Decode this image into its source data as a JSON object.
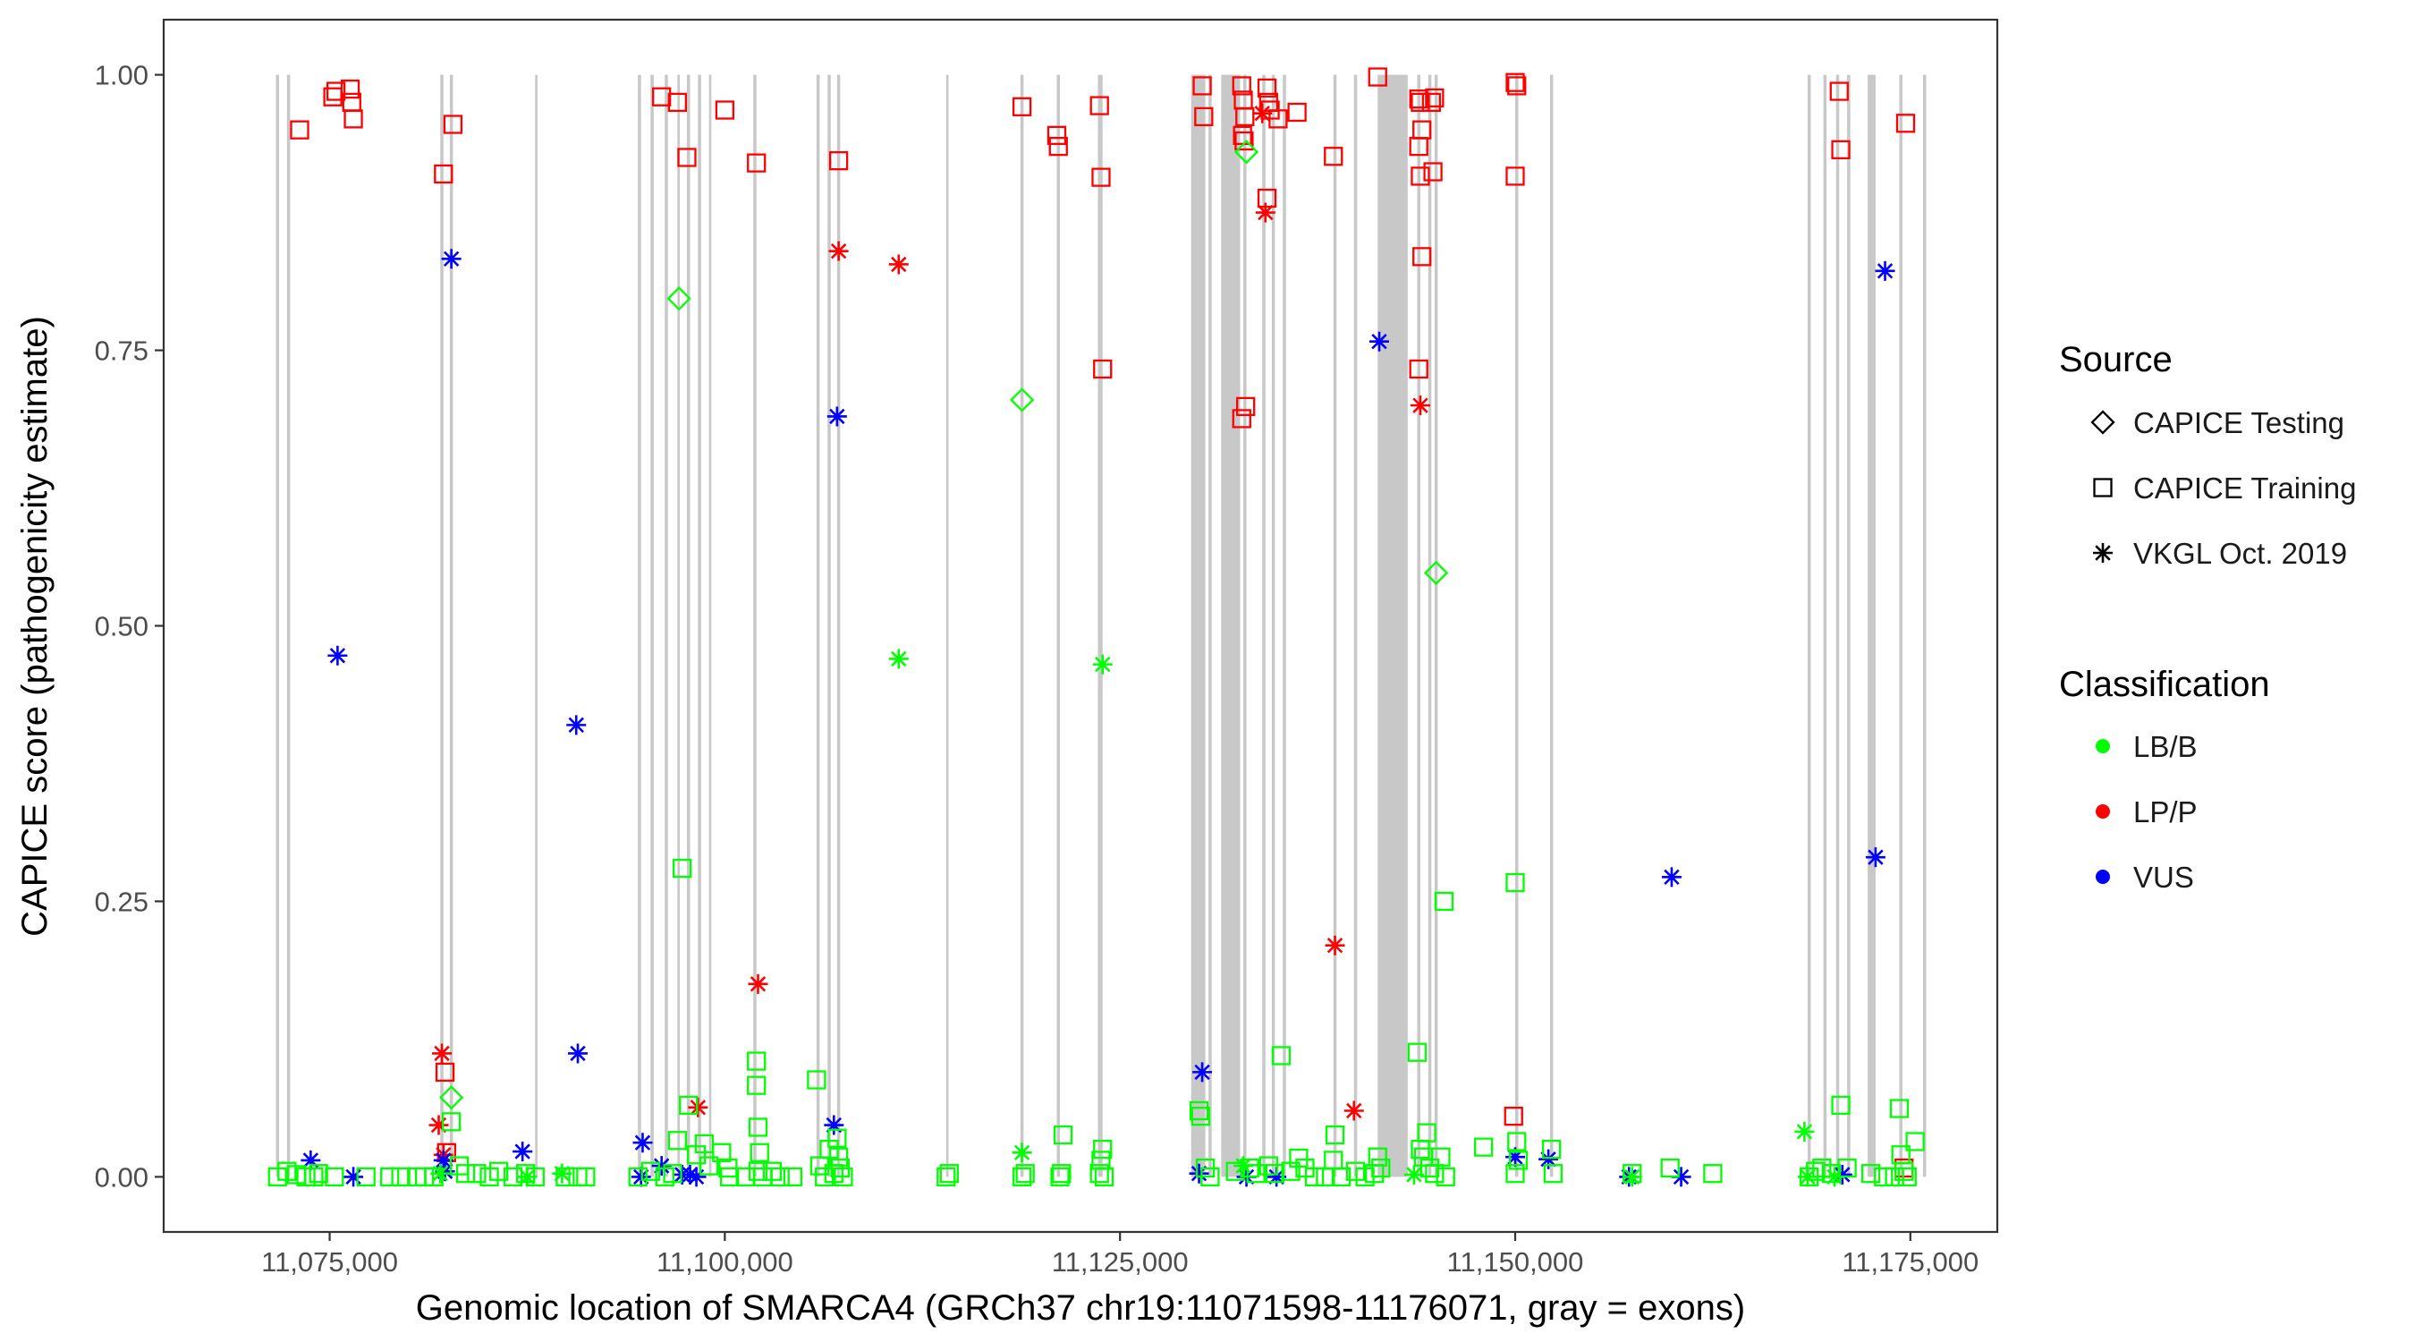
{
  "chart_data": {
    "type": "scatter",
    "title": "",
    "xlabel": "Genomic location of SMARCA4 (GRCh37 chr19:11071598-11176071, gray = exons)",
    "ylabel": "CAPICE score (pathogenicity estimate)",
    "xlim": [
      11064500,
      11180500
    ],
    "ylim": [
      -0.05,
      1.05
    ],
    "x_ticks": [
      11075000,
      11100000,
      11125000,
      11150000,
      11175000
    ],
    "x_tick_labels": [
      "11,075,000",
      "11,100,000",
      "11,125,000",
      "11,150,000",
      "11,175,000"
    ],
    "y_ticks": [
      0,
      0.25,
      0.5,
      0.75,
      1
    ],
    "y_tick_labels": [
      "0.00",
      "0.25",
      "0.50",
      "0.75",
      "1.00"
    ],
    "exons": [
      [
        11071600,
        11071800
      ],
      [
        11072300,
        11072500
      ],
      [
        11082000,
        11082200
      ],
      [
        11082600,
        11082800
      ],
      [
        11088000,
        11088150
      ],
      [
        11094500,
        11094700
      ],
      [
        11095300,
        11095500
      ],
      [
        11096200,
        11096400
      ],
      [
        11097000,
        11097150
      ],
      [
        11097600,
        11097800
      ],
      [
        11098300,
        11098500
      ],
      [
        11099000,
        11099150
      ],
      [
        11101800,
        11102000
      ],
      [
        11105800,
        11106000
      ],
      [
        11106500,
        11106700
      ],
      [
        11107100,
        11107300
      ],
      [
        11114000,
        11114150
      ],
      [
        11118700,
        11118900
      ],
      [
        11121000,
        11121200
      ],
      [
        11123600,
        11123900
      ],
      [
        11129500,
        11130400
      ],
      [
        11130600,
        11130800
      ],
      [
        11131400,
        11132600
      ],
      [
        11132800,
        11133000
      ],
      [
        11134000,
        11134200
      ],
      [
        11134600,
        11134800
      ],
      [
        11135300,
        11135500
      ],
      [
        11138500,
        11138700
      ],
      [
        11139800,
        11140000
      ],
      [
        11141300,
        11143200
      ],
      [
        11143800,
        11144000
      ],
      [
        11144500,
        11144700
      ],
      [
        11144900,
        11145100
      ],
      [
        11150000,
        11150200
      ],
      [
        11152200,
        11152400
      ],
      [
        11168500,
        11168700
      ],
      [
        11169500,
        11169700
      ],
      [
        11170300,
        11170500
      ],
      [
        11171000,
        11171200
      ],
      [
        11172300,
        11172800
      ],
      [
        11174300,
        11174500
      ],
      [
        11175800,
        11176000
      ]
    ],
    "source_legend": {
      "title": "Source",
      "items": [
        {
          "label": "CAPICE Testing",
          "shape": "diamond"
        },
        {
          "label": "CAPICE Training",
          "shape": "square"
        },
        {
          "label": "VKGL Oct. 2019",
          "shape": "asterisk"
        }
      ]
    },
    "class_legend": {
      "title": "Classification",
      "items": [
        {
          "label": "LB/B",
          "color": "#00ff00"
        },
        {
          "label": "LP/P",
          "color": "#ff0000"
        },
        {
          "label": "VUS",
          "color": "#0000ff"
        }
      ]
    },
    "series": [
      {
        "name": "CAPICE Training / LP/P",
        "shape": "square",
        "color": "#ff0000",
        "points": [
          [
            11073100,
            0.95
          ],
          [
            11075200,
            0.98
          ],
          [
            11075400,
            0.985
          ],
          [
            11076300,
            0.987
          ],
          [
            11076400,
            0.975
          ],
          [
            11076500,
            0.96
          ],
          [
            11082200,
            0.91
          ],
          [
            11082800,
            0.955
          ],
          [
            11082300,
            0.095
          ],
          [
            11082400,
            0.022
          ],
          [
            11096000,
            0.98
          ],
          [
            11097000,
            0.975
          ],
          [
            11097600,
            0.925
          ],
          [
            11100000,
            0.968
          ],
          [
            11102000,
            0.92
          ],
          [
            11107200,
            0.922
          ],
          [
            11118800,
            0.971
          ],
          [
            11121000,
            0.945
          ],
          [
            11121100,
            0.935
          ],
          [
            11123700,
            0.972
          ],
          [
            11123800,
            0.907
          ],
          [
            11123900,
            0.733
          ],
          [
            11130200,
            0.99
          ],
          [
            11130300,
            0.962
          ],
          [
            11132700,
            0.99
          ],
          [
            11132800,
            0.977
          ],
          [
            11132900,
            0.962
          ],
          [
            11132750,
            0.945
          ],
          [
            11132850,
            0.94
          ],
          [
            11132950,
            0.699
          ],
          [
            11132700,
            0.688
          ],
          [
            11134300,
            0.988
          ],
          [
            11134400,
            0.975
          ],
          [
            11134500,
            0.968
          ],
          [
            11135000,
            0.96
          ],
          [
            11136200,
            0.966
          ],
          [
            11134300,
            0.888
          ],
          [
            11138500,
            0.926
          ],
          [
            11141300,
            0.998
          ],
          [
            11143900,
            0.978
          ],
          [
            11144000,
            0.975
          ],
          [
            11144100,
            0.95
          ],
          [
            11143900,
            0.935
          ],
          [
            11144000,
            0.908
          ],
          [
            11144100,
            0.835
          ],
          [
            11143900,
            0.733
          ],
          [
            11144700,
            0.975
          ],
          [
            11144900,
            0.979
          ],
          [
            11144800,
            0.912
          ],
          [
            11150000,
            0.993
          ],
          [
            11150100,
            0.99
          ],
          [
            11150000,
            0.908
          ],
          [
            11149900,
            0.055
          ],
          [
            11170500,
            0.985
          ],
          [
            11170600,
            0.932
          ],
          [
            11174700,
            0.956
          ],
          [
            11174600,
            0.008
          ]
        ]
      },
      {
        "name": "VKGL Oct. 2019 / LP/P",
        "shape": "asterisk",
        "color": "#ff0000",
        "points": [
          [
            11082100,
            0.112
          ],
          [
            11081900,
            0.047
          ],
          [
            11082200,
            0.02
          ],
          [
            11098300,
            0.063
          ],
          [
            11102100,
            0.175
          ],
          [
            11107200,
            0.84
          ],
          [
            11111000,
            0.828
          ],
          [
            11134000,
            0.965
          ],
          [
            11134200,
            0.875
          ],
          [
            11138600,
            0.21
          ],
          [
            11139800,
            0.06
          ],
          [
            11144000,
            0.7
          ]
        ]
      },
      {
        "name": "VKGL Oct. 2019 / VUS",
        "shape": "asterisk",
        "color": "#0000ff",
        "points": [
          [
            11073800,
            0.015
          ],
          [
            11075500,
            0.473
          ],
          [
            11076500,
            0.0
          ],
          [
            11082200,
            0.015
          ],
          [
            11082300,
            0.005
          ],
          [
            11082700,
            0.833
          ],
          [
            11087200,
            0.023
          ],
          [
            11090600,
            0.41
          ],
          [
            11090700,
            0.112
          ],
          [
            11094800,
            0.031
          ],
          [
            11096000,
            0.01
          ],
          [
            11094700,
            0.0
          ],
          [
            11097300,
            0.002
          ],
          [
            11097800,
            0.002
          ],
          [
            11098200,
            0.0
          ],
          [
            11106900,
            0.047
          ],
          [
            11107100,
            0.69
          ],
          [
            11130200,
            0.095
          ],
          [
            11130000,
            0.003
          ],
          [
            11133000,
            0.0
          ],
          [
            11134900,
            0.0
          ],
          [
            11141400,
            0.758
          ],
          [
            11150000,
            0.018
          ],
          [
            11152100,
            0.016
          ],
          [
            11157200,
            0.0
          ],
          [
            11159900,
            0.272
          ],
          [
            11160500,
            0.0
          ],
          [
            11170700,
            0.002
          ],
          [
            11172800,
            0.29
          ],
          [
            11173400,
            0.822
          ]
        ]
      },
      {
        "name": "VKGL Oct. 2019 / LB/B",
        "shape": "asterisk",
        "color": "#00ff00",
        "points": [
          [
            11082000,
            0.003
          ],
          [
            11087500,
            0.0
          ],
          [
            11089700,
            0.003
          ],
          [
            11111000,
            0.47
          ],
          [
            11118800,
            0.022
          ],
          [
            11123900,
            0.465
          ],
          [
            11132800,
            0.01
          ],
          [
            11143600,
            0.002
          ],
          [
            11157400,
            0.0
          ],
          [
            11168300,
            0.041
          ],
          [
            11168500,
            0.0
          ],
          [
            11170200,
            0.0
          ]
        ]
      },
      {
        "name": "CAPICE Testing / LB/B",
        "shape": "diamond",
        "color": "#00ff00",
        "points": [
          [
            11097100,
            0.797
          ],
          [
            11118800,
            0.705
          ],
          [
            11133000,
            0.93
          ],
          [
            11145000,
            0.548
          ],
          [
            11082700,
            0.072
          ]
        ]
      },
      {
        "name": "CAPICE Training / LB/B",
        "shape": "square",
        "color": "#00ff00",
        "points": [
          [
            11071700,
            0.0
          ],
          [
            11072300,
            0.005
          ],
          [
            11072900,
            0.002
          ],
          [
            11073500,
            0.0
          ],
          [
            11074000,
            0.0
          ],
          [
            11074300,
            0.003
          ],
          [
            11075300,
            0.0
          ],
          [
            11077300,
            0.0
          ],
          [
            11078800,
            0.0
          ],
          [
            11079500,
            0.0
          ],
          [
            11080500,
            0.0
          ],
          [
            11081000,
            0.0
          ],
          [
            11081600,
            0.0
          ],
          [
            11082700,
            0.05
          ],
          [
            11083200,
            0.01
          ],
          [
            11083600,
            0.003
          ],
          [
            11084300,
            0.003
          ],
          [
            11085100,
            0.0
          ],
          [
            11085700,
            0.005
          ],
          [
            11086600,
            0.0
          ],
          [
            11087400,
            0.003
          ],
          [
            11088000,
            0.0
          ],
          [
            11089900,
            0.0
          ],
          [
            11090700,
            0.0
          ],
          [
            11091200,
            0.0
          ],
          [
            11094500,
            0.0
          ],
          [
            11095300,
            0.005
          ],
          [
            11096200,
            0.0
          ],
          [
            11096700,
            0.003
          ],
          [
            11097000,
            0.033
          ],
          [
            11097300,
            0.28
          ],
          [
            11097700,
            0.065
          ],
          [
            11098200,
            0.02
          ],
          [
            11098700,
            0.03
          ],
          [
            11099000,
            0.01
          ],
          [
            11099800,
            0.022
          ],
          [
            11100200,
            0.008
          ],
          [
            11100300,
            0.0
          ],
          [
            11101300,
            0.0
          ],
          [
            11102000,
            0.105
          ],
          [
            11102000,
            0.083
          ],
          [
            11102100,
            0.045
          ],
          [
            11102200,
            0.022
          ],
          [
            11102100,
            0.005
          ],
          [
            11102400,
            0.0
          ],
          [
            11103000,
            0.005
          ],
          [
            11103500,
            0.0
          ],
          [
            11104300,
            0.0
          ],
          [
            11105800,
            0.088
          ],
          [
            11106000,
            0.01
          ],
          [
            11106300,
            0.0
          ],
          [
            11106600,
            0.025
          ],
          [
            11106900,
            0.003
          ],
          [
            11107100,
            0.035
          ],
          [
            11107200,
            0.018
          ],
          [
            11107300,
            0.008
          ],
          [
            11107500,
            0.0
          ],
          [
            11114000,
            0.0
          ],
          [
            11114200,
            0.003
          ],
          [
            11118800,
            0.0
          ],
          [
            11119000,
            0.003
          ],
          [
            11121200,
            0.0
          ],
          [
            11121400,
            0.038
          ],
          [
            11121300,
            0.003
          ],
          [
            11123900,
            0.025
          ],
          [
            11123800,
            0.015
          ],
          [
            11123700,
            0.003
          ],
          [
            11124000,
            0.0
          ],
          [
            11130000,
            0.06
          ],
          [
            11130100,
            0.055
          ],
          [
            11130400,
            0.008
          ],
          [
            11130700,
            0.0
          ],
          [
            11132300,
            0.005
          ],
          [
            11133200,
            0.008
          ],
          [
            11133600,
            0.003
          ],
          [
            11134400,
            0.01
          ],
          [
            11134800,
            0.003
          ],
          [
            11135200,
            0.11
          ],
          [
            11135800,
            0.005
          ],
          [
            11136300,
            0.017
          ],
          [
            11136700,
            0.008
          ],
          [
            11137300,
            0.0
          ],
          [
            11138000,
            0.0
          ],
          [
            11138500,
            0.015
          ],
          [
            11138600,
            0.038
          ],
          [
            11139000,
            0.0
          ],
          [
            11139900,
            0.005
          ],
          [
            11140500,
            0.0
          ],
          [
            11141100,
            0.003
          ],
          [
            11141300,
            0.018
          ],
          [
            11141500,
            0.008
          ],
          [
            11143800,
            0.113
          ],
          [
            11144000,
            0.025
          ],
          [
            11144200,
            0.018
          ],
          [
            11144400,
            0.04
          ],
          [
            11144600,
            0.008
          ],
          [
            11144900,
            0.003
          ],
          [
            11145300,
            0.018
          ],
          [
            11145500,
            0.25
          ],
          [
            11145600,
            0.0
          ],
          [
            11148000,
            0.027
          ],
          [
            11150000,
            0.267
          ],
          [
            11150100,
            0.032
          ],
          [
            11150200,
            0.015
          ],
          [
            11150000,
            0.003
          ],
          [
            11152300,
            0.025
          ],
          [
            11152400,
            0.003
          ],
          [
            11157400,
            0.003
          ],
          [
            11159800,
            0.008
          ],
          [
            11162500,
            0.003
          ],
          [
            11168600,
            0.0
          ],
          [
            11169000,
            0.005
          ],
          [
            11169400,
            0.008
          ],
          [
            11170000,
            0.003
          ],
          [
            11170600,
            0.065
          ],
          [
            11171000,
            0.008
          ],
          [
            11172500,
            0.003
          ],
          [
            11173300,
            0.0
          ],
          [
            11174000,
            0.0
          ],
          [
            11174300,
            0.062
          ],
          [
            11174400,
            0.02
          ],
          [
            11174600,
            0.005
          ],
          [
            11175300,
            0.032
          ],
          [
            11174800,
            0.0
          ]
        ]
      }
    ]
  }
}
